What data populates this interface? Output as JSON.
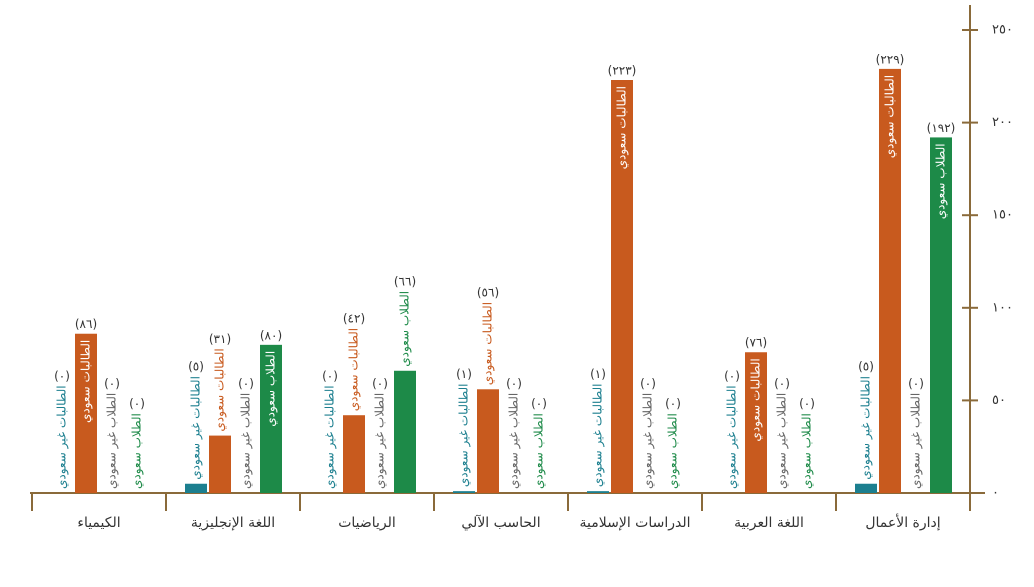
{
  "chart_data": {
    "type": "bar",
    "categories": [
      "إدارة الأعمال",
      "اللغة العربية",
      "الدراسات الإسلامية",
      "الحاسب الآلي",
      "الرياضيات",
      "اللغة الإنجليزية",
      "الكيمياء"
    ],
    "series": [
      {
        "name": "الطالبات غير سعودي",
        "color": "#1c7f8f",
        "values": [
          5,
          0,
          1,
          1,
          0,
          5,
          0
        ],
        "value_labels": [
          "(٥)",
          "(٠)",
          "(١)",
          "(١)",
          "(٠)",
          "(٥)",
          "(٠)"
        ]
      },
      {
        "name": "الطالبات سعودي",
        "color": "#c85a1e",
        "values": [
          229,
          76,
          223,
          56,
          42,
          31,
          86
        ],
        "value_labels": [
          "(٢٢٩)",
          "(٧٦)",
          "(٢٢٣)",
          "(٥٦)",
          "(٤٢)",
          "(٣١)",
          "(٨٦)"
        ]
      },
      {
        "name": "الطلاب غير سعودي",
        "color": "#666666",
        "values": [
          0,
          0,
          0,
          0,
          0,
          0,
          0
        ],
        "value_labels": [
          "(٠)",
          "(٠)",
          "(٠)",
          "(٠)",
          "(٠)",
          "(٠)",
          "(٠)"
        ]
      },
      {
        "name": "الطلاب سعودي",
        "color": "#1d8a48",
        "values": [
          192,
          0,
          0,
          0,
          66,
          80,
          0
        ],
        "value_labels": [
          "(١٩٢)",
          "(٠)",
          "(٠)",
          "(٠)",
          "(٦٦)",
          "(٨٠)",
          "(٠)"
        ]
      }
    ],
    "ylim": [
      0,
      250
    ],
    "yticks": [
      {
        "value": 0,
        "label": "٠"
      },
      {
        "value": 50,
        "label": "٥٠"
      },
      {
        "value": 100,
        "label": "١٠٠"
      },
      {
        "value": 150,
        "label": "١٥٠"
      },
      {
        "value": 200,
        "label": "٢٠٠"
      },
      {
        "value": 250,
        "label": "٢٥٠"
      }
    ]
  }
}
